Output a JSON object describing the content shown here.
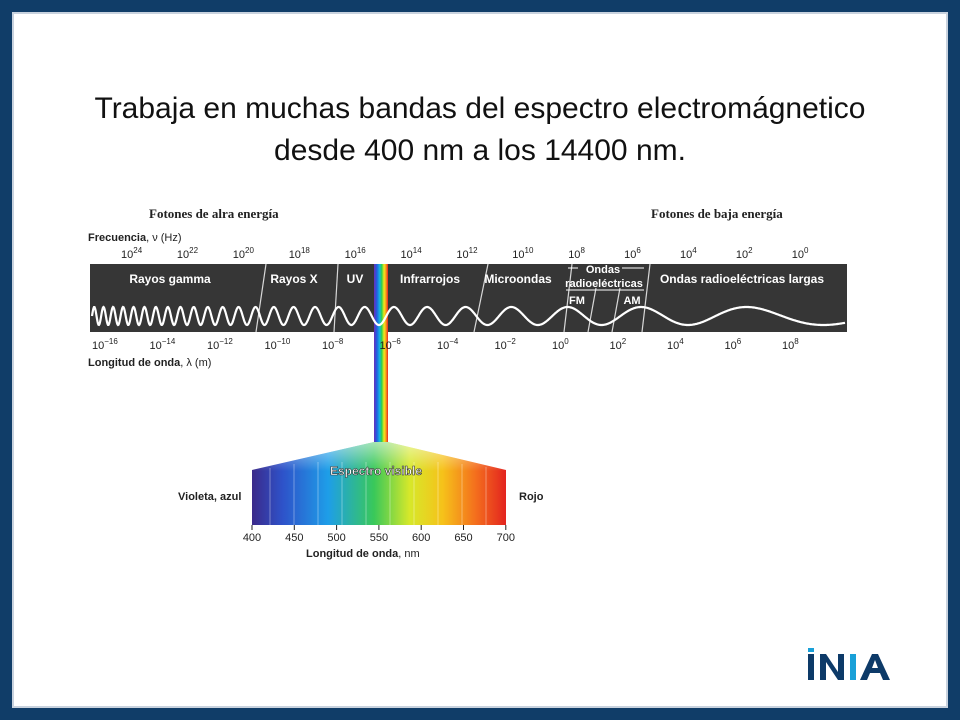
{
  "slide": {
    "title_line1": "Trabaja en muchas bandas del espectro electromágnetico",
    "title_line2": "desde 400 nm a los 14400 nm."
  },
  "diagram": {
    "high_energy_label": "Fotones de alra energía",
    "low_energy_label": "Fotones de baja energía",
    "frequency_label": "Frecuencia",
    "frequency_symbol": ", ν (Hz)",
    "frequency_ticks": [
      {
        "base": "10",
        "exp": "24"
      },
      {
        "base": "10",
        "exp": "22"
      },
      {
        "base": "10",
        "exp": "20"
      },
      {
        "base": "10",
        "exp": "18"
      },
      {
        "base": "10",
        "exp": "16"
      },
      {
        "base": "10",
        "exp": "14"
      },
      {
        "base": "10",
        "exp": "12"
      },
      {
        "base": "10",
        "exp": "10"
      },
      {
        "base": "10",
        "exp": "8"
      },
      {
        "base": "10",
        "exp": "6"
      },
      {
        "base": "10",
        "exp": "4"
      },
      {
        "base": "10",
        "exp": "2"
      },
      {
        "base": "10",
        "exp": "0"
      }
    ],
    "bands": {
      "gamma": "Rayos gamma",
      "xray": "Rayos X",
      "uv": "UV",
      "ir": "Infrarrojos",
      "micro": "Microondas",
      "radio_line1": "Ondas",
      "radio_line2": "radioeléctricas",
      "fm": "FM",
      "am": "AM",
      "longwave": "Ondas radioeléctricas largas"
    },
    "wavelength_label": "Longitud de onda",
    "wavelength_symbol": ", λ (m)",
    "wavelength_ticks": [
      {
        "base": "10",
        "exp": "−16"
      },
      {
        "base": "10",
        "exp": "−14"
      },
      {
        "base": "10",
        "exp": "−12"
      },
      {
        "base": "10",
        "exp": "−10"
      },
      {
        "base": "10",
        "exp": "−8"
      },
      {
        "base": "10",
        "exp": "−6"
      },
      {
        "base": "10",
        "exp": "−4"
      },
      {
        "base": "10",
        "exp": "−2"
      },
      {
        "base": "10",
        "exp": "0"
      },
      {
        "base": "10",
        "exp": "2"
      },
      {
        "base": "10",
        "exp": "4"
      },
      {
        "base": "10",
        "exp": "6"
      },
      {
        "base": "10",
        "exp": "8"
      }
    ],
    "visible_title": "Espectro visible",
    "violet_label": "Violeta, azul",
    "red_label": "Rojo",
    "nm_ticks": [
      "400",
      "450",
      "500",
      "550",
      "600",
      "650",
      "700"
    ],
    "nm_axis_label": "Longitud de onda",
    "nm_unit": ", nm"
  },
  "logo": {
    "text": "INIA",
    "colors": {
      "dark": "#0d3a68",
      "accent": "#19a0d8"
    }
  },
  "colors": {
    "frame": "#103d68",
    "band_bg": "#363636"
  }
}
